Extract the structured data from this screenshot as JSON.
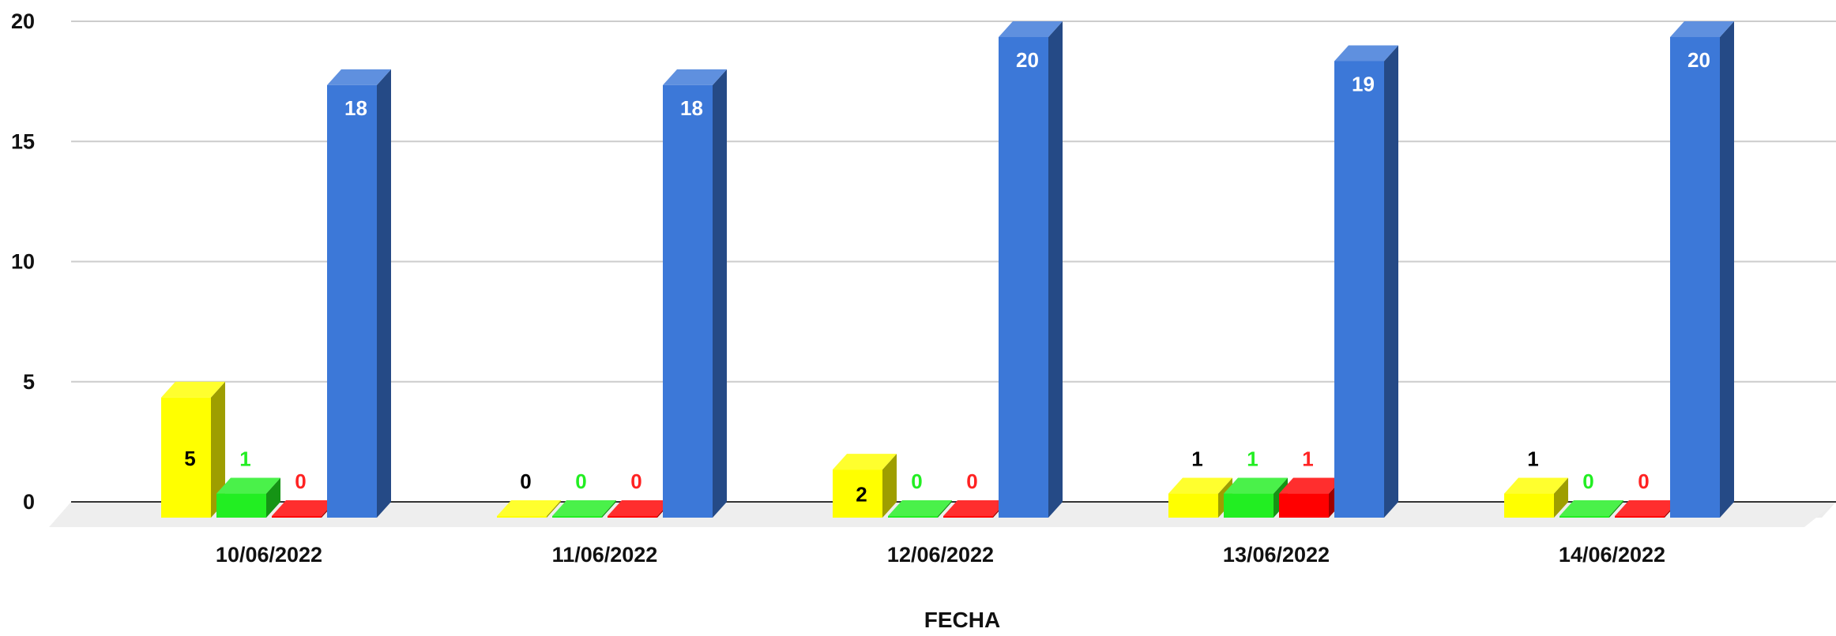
{
  "chart_data": {
    "type": "bar",
    "title": "",
    "xlabel": "FECHA",
    "ylabel": "",
    "ylim": [
      0,
      20
    ],
    "yticks": [
      0,
      5,
      10,
      15,
      20
    ],
    "grid": true,
    "legend": "none",
    "style": "3d",
    "categories": [
      "10/06/2022",
      "11/06/2022",
      "12/06/2022",
      "13/06/2022",
      "14/06/2022"
    ],
    "series": [
      {
        "color": "#ffff00",
        "label_color": "#000000",
        "values": [
          5,
          0,
          2,
          1,
          1
        ]
      },
      {
        "color": "#22ee22",
        "label_color": "#22ee22",
        "values": [
          1,
          0,
          0,
          1,
          0
        ]
      },
      {
        "color": "#ff0000",
        "label_color": "#ff2222",
        "values": [
          0,
          0,
          0,
          1,
          0
        ]
      },
      {
        "color": "#3c78d8",
        "label_color": "#ffffff",
        "values": [
          18,
          18,
          20,
          19,
          20
        ]
      }
    ]
  }
}
